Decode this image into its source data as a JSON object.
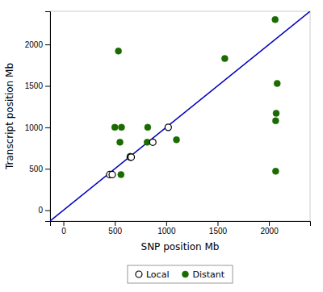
{
  "chart_data": {
    "type": "scatter",
    "xlabel": "SNP position Mb",
    "ylabel": "Transcript position Mb",
    "xlim": [
      -130,
      2400
    ],
    "ylim": [
      -130,
      2400
    ],
    "xticks": [
      0,
      500,
      1000,
      1500,
      2000
    ],
    "yticks": [
      0,
      500,
      1000,
      1500,
      2000
    ],
    "grid": false,
    "legend": "bottom",
    "series": [
      {
        "type": "line",
        "color": "#0000BB",
        "line_style": "solid",
        "x": [
          -130,
          2400
        ],
        "values": [
          -130,
          2400
        ]
      },
      {
        "name": "Local",
        "type": "scatter",
        "marker": "circle-open",
        "color": "black",
        "x": [
          450,
          475,
          650,
          660,
          870,
          1020
        ],
        "values": [
          430,
          430,
          640,
          640,
          820,
          1000
        ]
      },
      {
        "name": "Distant",
        "type": "scatter",
        "marker": "circle",
        "color": "#1a6b00",
        "x": [
          535,
          500,
          565,
          550,
          560,
          650,
          815,
          820,
          1100,
          1570,
          2060,
          2080,
          2070,
          2065,
          2065
        ],
        "values": [
          1920,
          1000,
          1000,
          820,
          430,
          650,
          820,
          1000,
          850,
          1830,
          2300,
          1530,
          1170,
          1080,
          470
        ]
      }
    ]
  }
}
